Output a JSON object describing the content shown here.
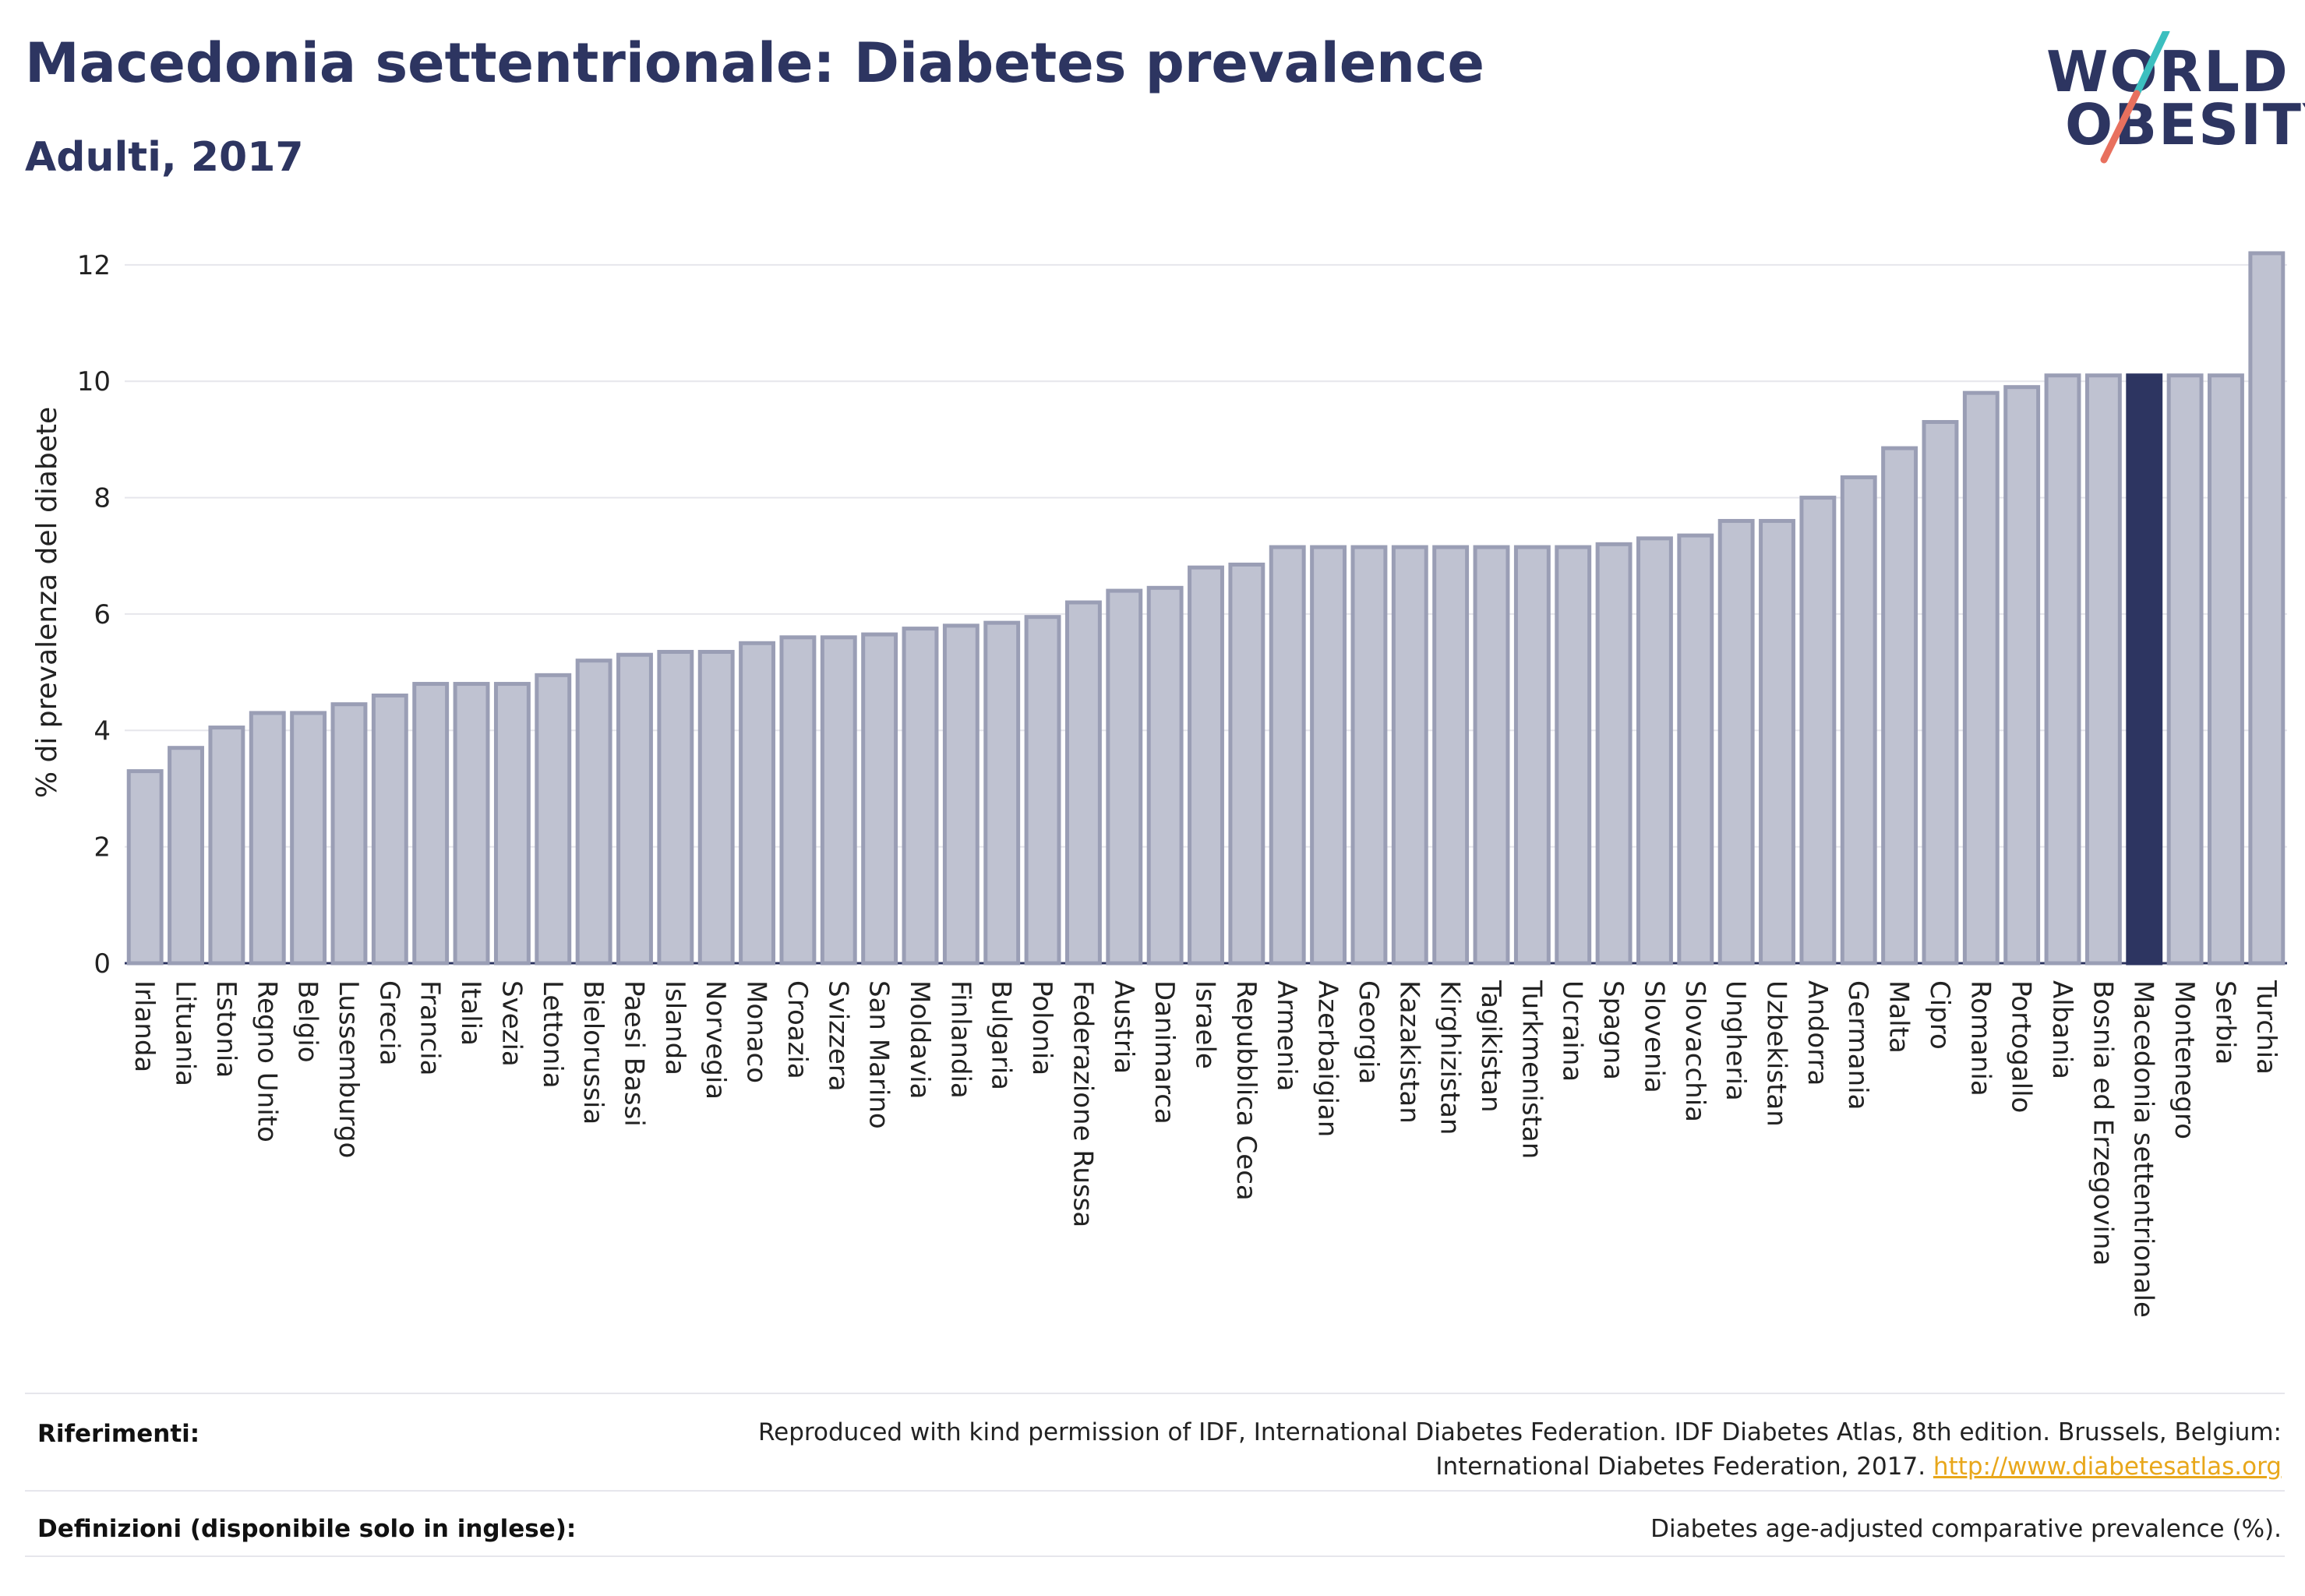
{
  "header": {
    "title": "Macedonia settentrionale: Diabetes prevalence",
    "subtitle": "Adulti, 2017"
  },
  "logo": {
    "line1": "WORLD",
    "line2": "OBESITY"
  },
  "chart_data": {
    "type": "bar",
    "ylabel": "% di prevalenza del diabete",
    "ylim": [
      0,
      12.4
    ],
    "yticks": [
      0,
      2,
      4,
      6,
      8,
      10,
      12
    ],
    "grid": true,
    "highlight": "Macedonia settentrionale",
    "colors": {
      "bar": "#bfc2d1",
      "bar_edge": "#9a9eb5",
      "highlight": "#2d3561"
    },
    "categories": [
      "Irlanda",
      "Lituania",
      "Estonia",
      "Regno Unito",
      "Belgio",
      "Lussemburgo",
      "Grecia",
      "Francia",
      "Italia",
      "Svezia",
      "Lettonia",
      "Bielorussia",
      "Paesi Bassi",
      "Islanda",
      "Norvegia",
      "Monaco",
      "Croazia",
      "Svizzera",
      "San Marino",
      "Moldavia",
      "Finlandia",
      "Bulgaria",
      "Polonia",
      "Federazione Russa",
      "Austria",
      "Danimarca",
      "Israele",
      "Repubblica Ceca",
      "Armenia",
      "Azerbaigian",
      "Georgia",
      "Kazakistan",
      "Kirghizistan",
      "Tagikistan",
      "Turkmenistan",
      "Ucraina",
      "Spagna",
      "Slovenia",
      "Slovacchia",
      "Ungheria",
      "Uzbekistan",
      "Andorra",
      "Germania",
      "Malta",
      "Cipro",
      "Romania",
      "Portogallo",
      "Albania",
      "Bosnia ed Erzegovina",
      "Macedonia settentrionale",
      "Montenegro",
      "Serbia",
      "Turchia"
    ],
    "values": [
      3.3,
      3.7,
      4.05,
      4.3,
      4.3,
      4.45,
      4.6,
      4.8,
      4.8,
      4.8,
      4.95,
      5.2,
      5.3,
      5.35,
      5.35,
      5.5,
      5.6,
      5.6,
      5.65,
      5.75,
      5.8,
      5.85,
      5.95,
      6.2,
      6.4,
      6.45,
      6.8,
      6.85,
      7.15,
      7.15,
      7.15,
      7.15,
      7.15,
      7.15,
      7.15,
      7.15,
      7.2,
      7.3,
      7.35,
      7.6,
      7.6,
      8.0,
      8.35,
      8.85,
      9.3,
      9.8,
      9.9,
      10.1,
      10.1,
      10.1,
      10.1,
      10.1,
      12.2
    ]
  },
  "footer": {
    "references_label": "Riferimenti:",
    "references_line1": "Reproduced with kind permission of IDF, International Diabetes Federation. IDF Diabetes Atlas, 8th edition. Brussels, Belgium:",
    "references_line2": "International Diabetes Federation, 2017.",
    "references_link": "http://www.diabetesatlas.org",
    "definitions_label": "Definizioni (disponibile solo in inglese):",
    "definitions_text": "Diabetes age-adjusted comparative prevalence (%)."
  }
}
